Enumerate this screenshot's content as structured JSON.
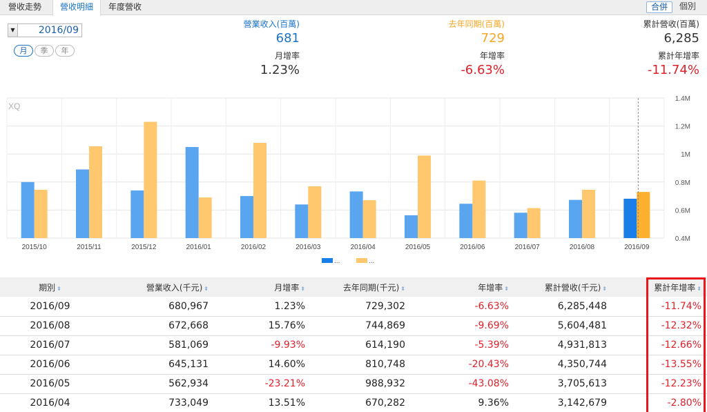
{
  "tabs": [
    {
      "label": "營收走勢",
      "active": false
    },
    {
      "label": "營收明細",
      "active": true
    },
    {
      "label": "年度營收",
      "active": false
    }
  ],
  "view_toggle": {
    "merge": "合併",
    "single": "個別"
  },
  "period": {
    "value": "2016/09"
  },
  "frequency": [
    {
      "label": "月",
      "active": true
    },
    {
      "label": "季",
      "active": false
    },
    {
      "label": "年",
      "active": false
    }
  ],
  "stats": {
    "revenue": {
      "label": "營業收入(百萬)",
      "value": "681"
    },
    "last_year": {
      "label": "去年同期(百萬)",
      "value": "729"
    },
    "cumulative": {
      "label": "累計營收(百萬)",
      "value": "6,285"
    },
    "mom": {
      "label": "月增率",
      "value": "1.23%"
    },
    "yoy": {
      "label": "年增率",
      "value": "-6.63%"
    },
    "cum_yoy": {
      "label": "累計年增率",
      "value": "-11.74%"
    }
  },
  "colors": {
    "blue": "#5aa5f0",
    "orange": "#ffc86e",
    "blue_highlight": "#1a7ee8",
    "orange_highlight": "#fbb02e",
    "red": "#e0202a",
    "stat_blue": "#1a73c8",
    "stat_orange": "#f5a623"
  },
  "chart_data": {
    "type": "bar",
    "watermark": "XQ",
    "categories": [
      "2015/10",
      "2015/11",
      "2015/12",
      "2016/01",
      "2016/02",
      "2016/03",
      "2016/04",
      "2016/05",
      "2016/06",
      "2016/07",
      "2016/08",
      "2016/09"
    ],
    "series": [
      {
        "name": "...",
        "values": [
          800000,
          890000,
          740000,
          1050000,
          700000,
          640000,
          733049,
          562934,
          645131,
          581069,
          672668,
          680967
        ]
      },
      {
        "name": "...",
        "values": [
          745000,
          1055000,
          1230000,
          690000,
          1080000,
          770000,
          670282,
          988932,
          810748,
          614190,
          744869,
          729302
        ]
      }
    ],
    "ylim": [
      400000,
      1400000
    ],
    "yticks": [
      {
        "value": 400000,
        "label": "0.4M"
      },
      {
        "value": 600000,
        "label": "0.6M"
      },
      {
        "value": 800000,
        "label": "0.8M"
      },
      {
        "value": 1000000,
        "label": "1M"
      },
      {
        "value": 1200000,
        "label": "1.2M"
      },
      {
        "value": 1400000,
        "label": "1.4M"
      }
    ],
    "grid": true,
    "highlight_index": 11,
    "legend": {
      "position": "bottom",
      "entries": [
        "...",
        "..."
      ]
    }
  },
  "table": {
    "headers": [
      "期別",
      "營業收入(千元)",
      "月增率",
      "去年同期(千元)",
      "年增率",
      "累計營收(千元)",
      "累計年增率"
    ],
    "rows": [
      [
        "2016/09",
        "680,967",
        "1.23%",
        "729,302",
        "-6.63%",
        "6,285,448",
        "-11.74%"
      ],
      [
        "2016/08",
        "672,668",
        "15.76%",
        "744,869",
        "-9.69%",
        "5,604,481",
        "-12.32%"
      ],
      [
        "2016/07",
        "581,069",
        "-9.93%",
        "614,190",
        "-5.39%",
        "4,931,813",
        "-12.66%"
      ],
      [
        "2016/06",
        "645,131",
        "14.60%",
        "810,748",
        "-20.43%",
        "4,350,744",
        "-13.55%"
      ],
      [
        "2016/05",
        "562,934",
        "-23.21%",
        "988,932",
        "-43.08%",
        "3,705,613",
        "-12.23%"
      ],
      [
        "2016/04",
        "733,049",
        "13.51%",
        "670,282",
        "9.36%",
        "3,142,679",
        "-2.80%"
      ]
    ]
  }
}
